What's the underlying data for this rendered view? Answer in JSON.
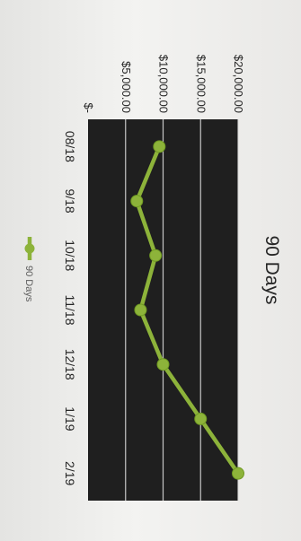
{
  "chart_data": {
    "type": "line",
    "title": "90 Days",
    "categories": [
      "08/18",
      "9/18",
      "10/18",
      "11/18",
      "12/18",
      "1/19",
      "2/19"
    ],
    "series": [
      {
        "name": "90 Days",
        "color": "#8db33a",
        "values": [
          9500,
          6500,
          9000,
          7000,
          10000,
          15000,
          20000
        ]
      }
    ],
    "y_ticks": [
      "$-",
      "$5,000.00",
      "$10,000.00",
      "$15,000.00",
      "$20,000.00"
    ],
    "ylim": [
      0,
      20000
    ],
    "grid": true,
    "legend_position": "bottom",
    "plot_background": "#1f1f1f"
  }
}
